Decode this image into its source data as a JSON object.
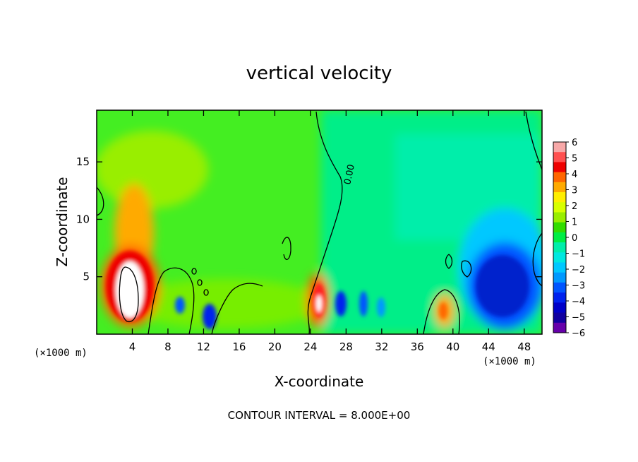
{
  "chart_data": {
    "type": "heatmap",
    "title": "vertical velocity",
    "xlabel": "X-coordinate",
    "ylabel": "Z-coordinate",
    "x_unit_note": "(×1000 m)",
    "z_unit_note": "(×1000 m)",
    "footer": "CONTOUR INTERVAL = 8.000E+00",
    "contour_label": "0.00",
    "xlim": [
      0,
      50
    ],
    "ylim": [
      0,
      19.5
    ],
    "x_ticks": [
      4,
      8,
      12,
      16,
      20,
      24,
      28,
      32,
      36,
      40,
      44,
      48
    ],
    "y_ticks": [
      5,
      10,
      15
    ],
    "colorbar": {
      "ticks": [
        6,
        5,
        4,
        3,
        2,
        1,
        0,
        -1,
        -2,
        -3,
        -4,
        -5,
        -6
      ],
      "range": [
        -6,
        6
      ],
      "colors": [
        "#f7a8a8",
        "#ff5050",
        "#ee0000",
        "#ff6600",
        "#ffaa00",
        "#ffee00",
        "#d8ff00",
        "#99ee00",
        "#33dd00",
        "#00ee44",
        "#00eeaa",
        "#00e8e0",
        "#00c8ff",
        "#0099ff",
        "#0055ff",
        "#0022ee",
        "#0000c8",
        "#1100a0",
        "#6600aa"
      ]
    },
    "features": [
      {
        "x": 4.0,
        "z": 4.5,
        "value": 8.0,
        "note": "strong updraft core (white)"
      },
      {
        "x": 4.5,
        "z": 10.5,
        "value": 3.0
      },
      {
        "x": 25.0,
        "z": 3.0,
        "value": 6.0
      },
      {
        "x": 46.0,
        "z": 4.5,
        "value": -5.0
      },
      {
        "x": 12.5,
        "z": 1.5,
        "value": -4.0
      },
      {
        "x": 39.0,
        "z": 2.0,
        "value": 3.0
      }
    ]
  }
}
